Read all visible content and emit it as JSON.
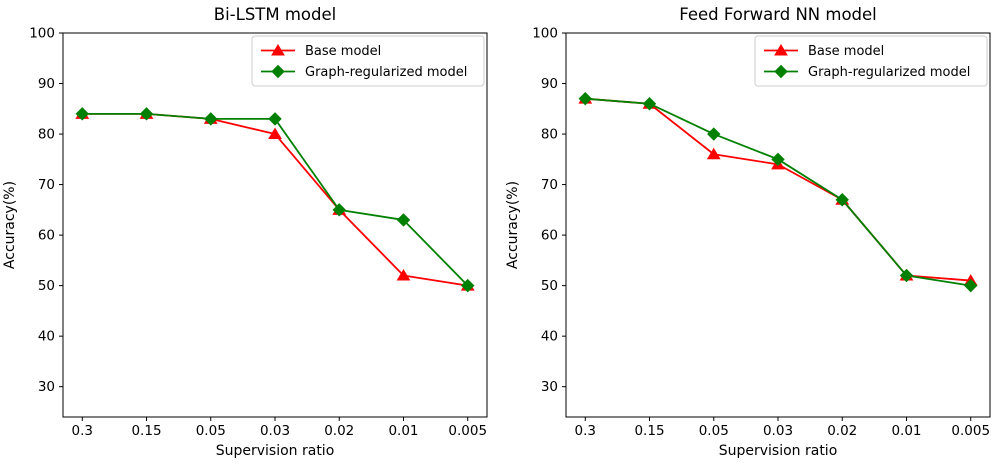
{
  "figure": {
    "background": "#ffffff",
    "text_color": "#000000",
    "spine_color": "#000000",
    "legend_border_color": "#cccccc",
    "legend_background": "#ffffff"
  },
  "chart_data": [
    {
      "type": "line",
      "title": "Bi-LSTM model",
      "xlabel": "Supervision ratio",
      "ylabel": "Accuracy(%)",
      "categories": [
        "0.3",
        "0.15",
        "0.05",
        "0.03",
        "0.02",
        "0.01",
        "0.005"
      ],
      "yticks": [
        30,
        40,
        50,
        60,
        70,
        80,
        90,
        100
      ],
      "ylim": [
        24,
        100
      ],
      "grid": false,
      "legend_position": "upper right",
      "series": [
        {
          "name": "Base model",
          "color": "#ff0000",
          "marker": "triangle",
          "values": [
            84,
            84,
            83,
            80,
            65,
            52,
            50
          ]
        },
        {
          "name": "Graph-regularized model",
          "color": "#008000",
          "marker": "diamond",
          "values": [
            84,
            84,
            83,
            83,
            65,
            63,
            50
          ]
        }
      ]
    },
    {
      "type": "line",
      "title": "Feed Forward NN model",
      "xlabel": "Supervision ratio",
      "ylabel": "Accuracy(%)",
      "categories": [
        "0.3",
        "0.15",
        "0.05",
        "0.03",
        "0.02",
        "0.01",
        "0.005"
      ],
      "yticks": [
        30,
        40,
        50,
        60,
        70,
        80,
        90,
        100
      ],
      "ylim": [
        24,
        100
      ],
      "grid": false,
      "legend_position": "upper right",
      "series": [
        {
          "name": "Base model",
          "color": "#ff0000",
          "marker": "triangle",
          "values": [
            87,
            86,
            76,
            74,
            67,
            52,
            51
          ]
        },
        {
          "name": "Graph-regularized model",
          "color": "#008000",
          "marker": "diamond",
          "values": [
            87,
            86,
            80,
            75,
            67,
            52,
            50
          ]
        }
      ]
    }
  ]
}
